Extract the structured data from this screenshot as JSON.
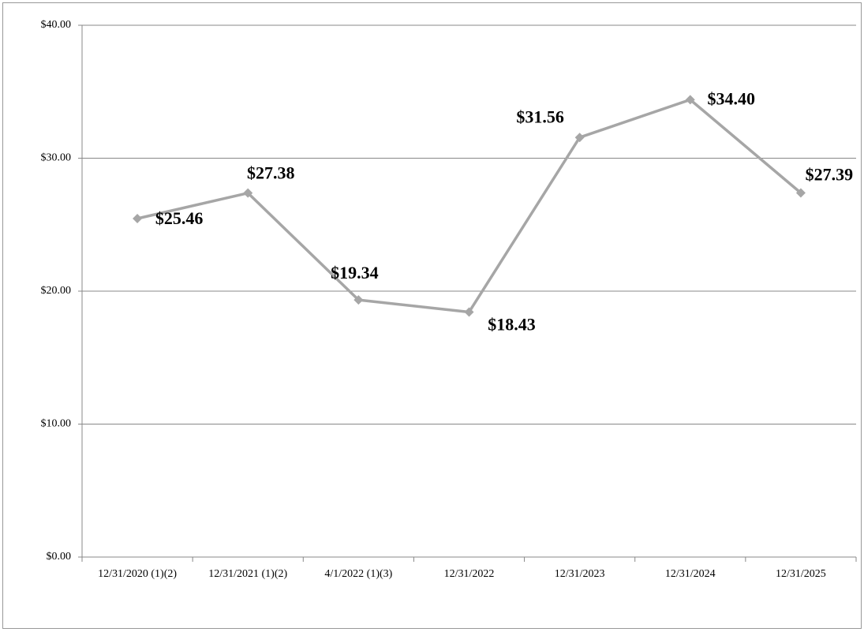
{
  "chart_data": {
    "type": "line",
    "categories": [
      "12/31/2020 (1)(2)",
      "12/31/2021 (1)(2)",
      "4/1/2022 (1)(3)",
      "12/31/2022",
      "12/31/2023",
      "12/31/2024",
      "12/31/2025"
    ],
    "values": [
      25.46,
      27.38,
      19.34,
      18.43,
      31.56,
      34.4,
      27.39
    ],
    "value_labels": [
      "$25.46",
      "$27.38",
      "$19.34",
      "$18.43",
      "$31.56",
      "$34.40",
      "$27.39"
    ],
    "color": "#a6a6a6",
    "ylim": [
      0,
      40
    ],
    "yticks": [
      {
        "value": 0,
        "label": "$0.00"
      },
      {
        "value": 10,
        "label": "$10.00"
      },
      {
        "value": 20,
        "label": "$20.00"
      },
      {
        "value": 30,
        "label": "$30.00"
      },
      {
        "value": 40,
        "label": "$40.00"
      }
    ],
    "grid": true
  }
}
